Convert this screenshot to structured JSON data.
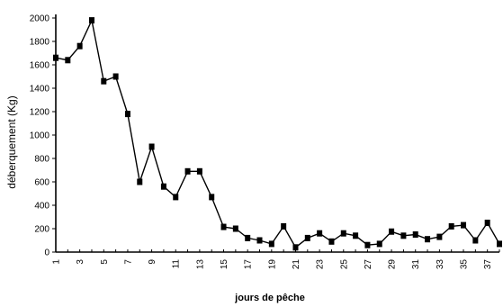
{
  "chart_data": {
    "type": "line",
    "title": "",
    "xlabel": "jours de pêche",
    "ylabel": "déberquement (Kg)",
    "ylim": [
      0,
      2000
    ],
    "xlim": [
      1,
      38
    ],
    "y_ticks": [
      0,
      200,
      400,
      600,
      800,
      1000,
      1200,
      1400,
      1600,
      1800,
      2000
    ],
    "x_tick_labels": [
      "1",
      "3",
      "5",
      "7",
      "9",
      "11",
      "13",
      "15",
      "17",
      "19",
      "21",
      "23",
      "25",
      "27",
      "29",
      "31",
      "33",
      "35",
      "37"
    ],
    "grid": false,
    "marker": "square",
    "series": [
      {
        "x": [
          1,
          2,
          3,
          4,
          5,
          6,
          7,
          8,
          9,
          10,
          11,
          12,
          13,
          14,
          15,
          16,
          17,
          18,
          19,
          20,
          21,
          22,
          23,
          24,
          25,
          26,
          27,
          28,
          29,
          30,
          31,
          32,
          33,
          34,
          35,
          36,
          37,
          38
        ],
        "values": [
          1660,
          1640,
          1760,
          1980,
          1460,
          1500,
          1180,
          600,
          900,
          560,
          470,
          690,
          690,
          470,
          215,
          200,
          120,
          100,
          70,
          220,
          40,
          120,
          160,
          90,
          160,
          140,
          60,
          70,
          175,
          140,
          150,
          110,
          130,
          220,
          230,
          100,
          250,
          70
        ]
      }
    ]
  }
}
